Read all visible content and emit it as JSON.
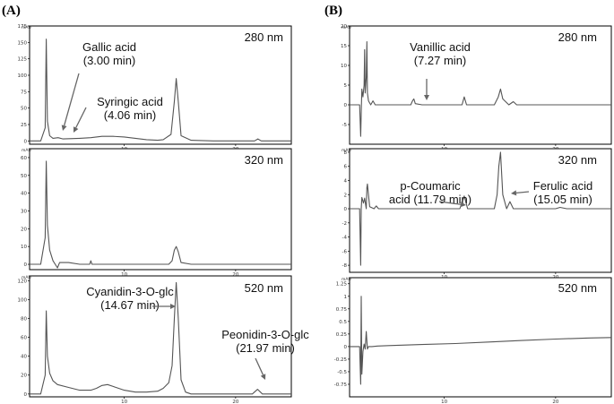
{
  "figure": {
    "panel_letters": [
      "(A)",
      "(B)"
    ],
    "y_unit": "mAU"
  },
  "chart_data": [
    {
      "type": "line",
      "panel": "(A)",
      "wavelength": "280 nm",
      "xlim": [
        1.5,
        25
      ],
      "ylim": [
        -5,
        175
      ],
      "yticks": [
        "175",
        "150",
        "125",
        "100",
        "75",
        "50",
        "25",
        "0"
      ],
      "yticks_num": [
        175,
        150,
        125,
        100,
        75,
        50,
        25,
        0
      ],
      "xticks": [
        "10",
        "20"
      ],
      "xticks_num": [
        10,
        20
      ],
      "x": [
        1.5,
        2.5,
        2.9,
        3.0,
        3.1,
        3.3,
        3.6,
        4.06,
        4.5,
        6,
        7,
        8,
        9,
        10,
        11,
        12,
        13,
        13.5,
        14.2,
        14.5,
        14.67,
        14.85,
        15.1,
        16,
        18,
        20,
        21.7,
        22,
        22.3,
        24,
        25
      ],
      "y": [
        0,
        0,
        20,
        155,
        30,
        8,
        4,
        5,
        3,
        4,
        5,
        7,
        7,
        6,
        4,
        2,
        1,
        2,
        10,
        60,
        95,
        60,
        8,
        1,
        0,
        0,
        0,
        3,
        0,
        0,
        0
      ],
      "annotations": [
        {
          "lines": [
            "Gallic acid",
            "(3.00 min)"
          ],
          "target_x": 3.0
        },
        {
          "lines": [
            "Syringic acid",
            "(4.06 min)"
          ],
          "target_x": 4.06
        }
      ]
    },
    {
      "type": "line",
      "panel": "(A)",
      "wavelength": "320 nm",
      "xlim": [
        1.5,
        25
      ],
      "ylim": [
        -3,
        65
      ],
      "yticks": [
        "60",
        "50",
        "40",
        "30",
        "20",
        "10",
        "0"
      ],
      "yticks_num": [
        60,
        50,
        40,
        30,
        20,
        10,
        0
      ],
      "xticks": [
        "10",
        "20"
      ],
      "xticks_num": [
        10,
        20
      ],
      "x": [
        1.5,
        2.5,
        2.9,
        3.0,
        3.1,
        3.3,
        3.6,
        4.0,
        4.2,
        5,
        6,
        6.9,
        7.0,
        7.1,
        8,
        10,
        12,
        14,
        14.3,
        14.5,
        14.67,
        14.85,
        15.1,
        16,
        20,
        25
      ],
      "y": [
        0,
        0,
        15,
        58,
        22,
        8,
        2,
        -2,
        1,
        1,
        0,
        0,
        2,
        0,
        0,
        0,
        0,
        0,
        2,
        8,
        10,
        7,
        1,
        0,
        0,
        0
      ],
      "annotations": []
    },
    {
      "type": "line",
      "panel": "(A)",
      "wavelength": "520 nm",
      "xlim": [
        1.5,
        25
      ],
      "ylim": [
        -3,
        125
      ],
      "yticks": [
        "120",
        "100",
        "80",
        "60",
        "40",
        "20",
        "0"
      ],
      "yticks_num": [
        120,
        100,
        80,
        60,
        40,
        20,
        0
      ],
      "xticks": [
        "10",
        "20"
      ],
      "xticks_num": [
        10,
        20
      ],
      "x": [
        1.5,
        2.5,
        2.9,
        3.0,
        3.1,
        3.3,
        3.6,
        4,
        5,
        6,
        7,
        7.5,
        8,
        8.5,
        9,
        10,
        11,
        12,
        13,
        13.5,
        14,
        14.3,
        14.5,
        14.67,
        14.85,
        15.1,
        15.5,
        16,
        18,
        20,
        21.5,
        21.97,
        22.4,
        23,
        25
      ],
      "y": [
        0,
        0,
        20,
        88,
        40,
        22,
        14,
        10,
        7,
        4,
        4,
        6,
        9,
        10,
        8,
        4,
        2,
        2,
        3,
        6,
        12,
        30,
        80,
        118,
        80,
        15,
        2,
        0,
        0,
        0,
        0,
        5,
        0,
        0,
        0
      ],
      "annotations": [
        {
          "lines": [
            "Cyanidin-3-O-glc",
            "(14.67 min)"
          ],
          "target_x": 14.67
        },
        {
          "lines": [
            "Peonidin-3-O-glc",
            "(21.97 min)"
          ],
          "target_x": 21.97
        }
      ]
    },
    {
      "type": "line",
      "panel": "(B)",
      "wavelength": "280 nm",
      "xlim": [
        1.5,
        25
      ],
      "ylim": [
        -10,
        20
      ],
      "yticks": [
        "20",
        "15",
        "10",
        "5",
        "0",
        "-5"
      ],
      "yticks_num": [
        20,
        15,
        10,
        5,
        0,
        -5
      ],
      "xticks": [
        "10",
        "20"
      ],
      "xticks_num": [
        10,
        20
      ],
      "x": [
        1.5,
        2.4,
        2.5,
        2.55,
        2.6,
        2.7,
        2.8,
        2.85,
        2.9,
        3.0,
        3.05,
        3.1,
        3.2,
        3.4,
        3.6,
        3.8,
        4,
        5,
        6,
        7,
        7.15,
        7.27,
        7.4,
        8,
        10,
        11,
        11.6,
        11.79,
        12,
        14.5,
        14.85,
        15.05,
        15.25,
        15.8,
        16.2,
        16.5,
        16.8,
        18,
        20,
        22,
        25
      ],
      "y": [
        0,
        0,
        -8,
        -2,
        4,
        2,
        5,
        14,
        3,
        7,
        16,
        3,
        1,
        0,
        1,
        0,
        0,
        0,
        0,
        0,
        1,
        1.5,
        0.3,
        0,
        0,
        0,
        0,
        2,
        0,
        0,
        2,
        4,
        1.5,
        0,
        0.8,
        0,
        0,
        0,
        0,
        0,
        0
      ],
      "annotations": [
        {
          "lines": [
            "Vanillic acid",
            "(7.27 min)"
          ],
          "target_x": 7.27
        }
      ]
    },
    {
      "type": "line",
      "panel": "(B)",
      "wavelength": "320 nm",
      "xlim": [
        1.5,
        25
      ],
      "ylim": [
        -9,
        8.5
      ],
      "yticks": [
        "8",
        "6",
        "4",
        "2",
        "0",
        "-2",
        "-4",
        "-6",
        "-8"
      ],
      "yticks_num": [
        8,
        6,
        4,
        2,
        0,
        -2,
        -4,
        -6,
        -8
      ],
      "xticks": [
        "10",
        "20"
      ],
      "xticks_num": [
        10,
        20
      ],
      "x": [
        1.5,
        2.4,
        2.5,
        2.55,
        2.6,
        2.75,
        2.85,
        3.0,
        3.05,
        3.1,
        3.3,
        3.7,
        3.9,
        4.1,
        5,
        6,
        8,
        10,
        11.4,
        11.79,
        12.1,
        13,
        14.5,
        14.75,
        14.9,
        15.05,
        15.25,
        15.6,
        15.9,
        16.2,
        17,
        20,
        20.4,
        21,
        25
      ],
      "y": [
        0,
        0,
        -8,
        0,
        1.6,
        0.8,
        1.5,
        0,
        3,
        3.5,
        0.3,
        0,
        0.4,
        0,
        0,
        0,
        0,
        0,
        0,
        1.8,
        0,
        0,
        0,
        2,
        6,
        8,
        2,
        0,
        1,
        0,
        0,
        0,
        0.2,
        0,
        0
      ],
      "annotations": [
        {
          "lines": [
            "p-Coumaric",
            "acid (11.79 min)"
          ],
          "target_x": 11.79
        },
        {
          "lines": [
            "Ferulic acid",
            "(15.05 min)"
          ],
          "target_x": 15.05
        }
      ]
    },
    {
      "type": "line",
      "panel": "(B)",
      "wavelength": "520 nm",
      "xlim": [
        1.5,
        25
      ],
      "ylim": [
        -1.0,
        1.37
      ],
      "yticks": [
        "1.25",
        "1",
        "0.75",
        "0.5",
        "0.25",
        "0",
        "-0.25",
        "-0.5",
        "-0.75"
      ],
      "yticks_num": [
        1.25,
        1,
        0.75,
        0.5,
        0.25,
        0,
        -0.25,
        -0.5,
        -0.75
      ],
      "xticks": [
        "10",
        "20"
      ],
      "xticks_num": [
        10,
        20
      ],
      "x": [
        1.5,
        2.4,
        2.5,
        2.55,
        2.6,
        2.7,
        2.8,
        2.9,
        3.0,
        3.1,
        3.2,
        3.3,
        3.5,
        4,
        5,
        8,
        11,
        14,
        17,
        20,
        23,
        25
      ],
      "y": [
        0,
        0,
        -0.75,
        1.0,
        -0.55,
        -0.1,
        0.05,
        -0.05,
        0.3,
        -0.05,
        0.0,
        0.0,
        0.0,
        0.01,
        0.02,
        0.04,
        0.06,
        0.09,
        0.12,
        0.15,
        0.17,
        0.18
      ],
      "annotations": []
    }
  ]
}
